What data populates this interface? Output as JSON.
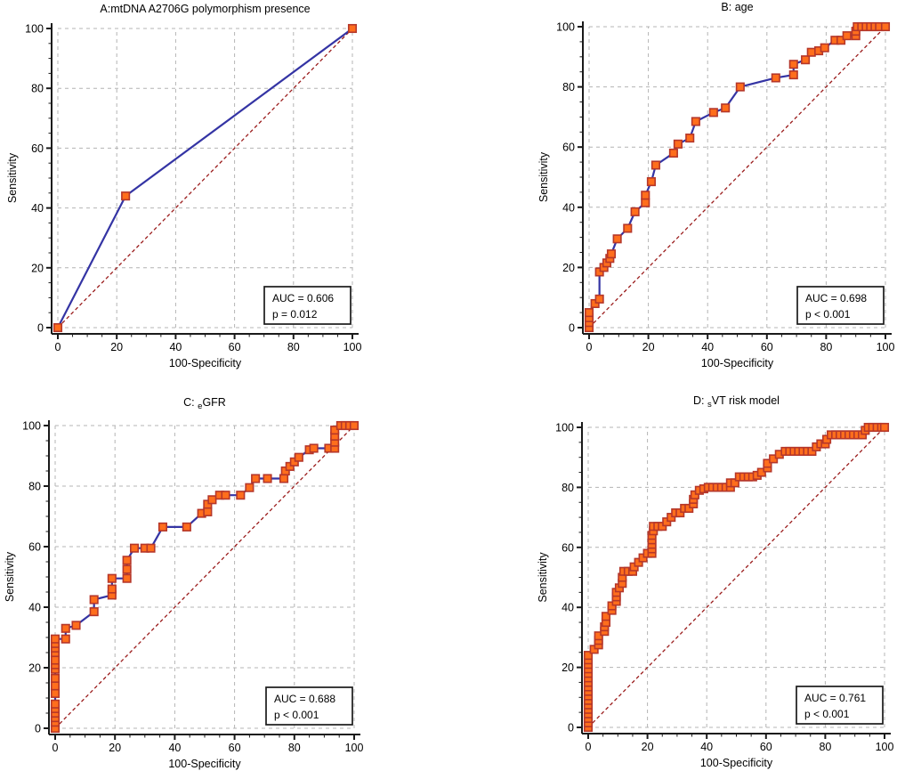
{
  "figure": {
    "background": "#ffffff"
  },
  "styles": {
    "line_color": "#3434a4",
    "marker_fill": "#ff6e1c",
    "marker_stroke": "#b5372a",
    "diagonal_color": "#9b1c1c",
    "grid_color": "#b4b4b4",
    "axis_color": "#1a1a1a",
    "text_color": "#000000",
    "box_border": "#1a1a1a",
    "box_bg": "#ffffff"
  },
  "chart_data": [
    {
      "id": "A",
      "type": "line",
      "title_parts": [
        {
          "text": "A:mtDNA A2706G polymorphism presence",
          "sub": false
        }
      ],
      "xlabel": "100-Specificity",
      "ylabel": "Sensitivity",
      "xlim": [
        0,
        100
      ],
      "ylim": [
        0,
        100
      ],
      "major_ticks": [
        0,
        20,
        40,
        60,
        80,
        100
      ],
      "minor_step": 5,
      "grid": true,
      "diagonal": true,
      "legend": {
        "auc_label": "AUC = 0.606",
        "p_label": "p = 0.012"
      },
      "points": [
        [
          0,
          0
        ],
        [
          23,
          44
        ],
        [
          100,
          100
        ]
      ]
    },
    {
      "id": "B",
      "type": "line",
      "title_parts": [
        {
          "text": "B: age",
          "sub": false
        }
      ],
      "xlabel": "100-Specificity",
      "ylabel": "Sensitivity",
      "xlim": [
        0,
        100
      ],
      "ylim": [
        0,
        100
      ],
      "major_ticks": [
        0,
        20,
        40,
        60,
        80,
        100
      ],
      "minor_step": 5,
      "grid": true,
      "diagonal": true,
      "legend": {
        "auc_label": "AUC = 0.698",
        "p_label": "p < 0.001"
      },
      "points": [
        [
          0,
          0
        ],
        [
          0,
          1.7
        ],
        [
          0,
          3.3
        ],
        [
          0,
          5
        ],
        [
          2,
          8
        ],
        [
          3.5,
          9.5
        ],
        [
          3.5,
          18.5
        ],
        [
          5,
          20
        ],
        [
          6,
          21.5
        ],
        [
          7,
          23
        ],
        [
          7.5,
          24.5
        ],
        [
          9.5,
          29.5
        ],
        [
          13,
          33
        ],
        [
          15.5,
          38.5
        ],
        [
          19,
          41.5
        ],
        [
          19,
          44
        ],
        [
          21,
          48.5
        ],
        [
          22.5,
          54
        ],
        [
          28.5,
          58
        ],
        [
          30,
          61
        ],
        [
          34,
          63
        ],
        [
          36,
          68.5
        ],
        [
          42,
          71.5
        ],
        [
          46,
          73
        ],
        [
          51,
          80
        ],
        [
          63,
          83
        ],
        [
          69,
          84
        ],
        [
          69,
          87.5
        ],
        [
          73,
          89
        ],
        [
          75,
          91.5
        ],
        [
          77.5,
          92
        ],
        [
          79.5,
          93
        ],
        [
          83,
          95.5
        ],
        [
          85,
          95.5
        ],
        [
          87,
          97
        ],
        [
          90,
          97
        ],
        [
          90,
          98.5
        ],
        [
          90.5,
          100
        ],
        [
          92,
          100
        ],
        [
          93.5,
          100
        ],
        [
          95,
          100
        ],
        [
          96.5,
          100
        ],
        [
          98,
          100
        ],
        [
          100,
          100
        ]
      ]
    },
    {
      "id": "C",
      "type": "line",
      "title_parts": [
        {
          "text": "C: ",
          "sub": false
        },
        {
          "text": "e",
          "sub": true
        },
        {
          "text": "GFR",
          "sub": false
        }
      ],
      "xlabel": "100-Specificity",
      "ylabel": "Sensitivity",
      "xlim": [
        0,
        100
      ],
      "ylim": [
        0,
        100
      ],
      "major_ticks": [
        0,
        20,
        40,
        60,
        80,
        100
      ],
      "minor_step": 5,
      "grid": true,
      "diagonal": true,
      "legend": {
        "auc_label": "AUC = 0.688",
        "p_label": "p < 0.001"
      },
      "points": [
        [
          0,
          0
        ],
        [
          0,
          2
        ],
        [
          0,
          3.5
        ],
        [
          0,
          5
        ],
        [
          0,
          6.5
        ],
        [
          0,
          8
        ],
        [
          0,
          11.5
        ],
        [
          0,
          14
        ],
        [
          0,
          16.5
        ],
        [
          0,
          19.5
        ],
        [
          0,
          21
        ],
        [
          0,
          22.5
        ],
        [
          0,
          25
        ],
        [
          0,
          26.5
        ],
        [
          0,
          28
        ],
        [
          0,
          29.5
        ],
        [
          3.5,
          29.5
        ],
        [
          3.5,
          33
        ],
        [
          7,
          34
        ],
        [
          13,
          38.5
        ],
        [
          13,
          42.5
        ],
        [
          19,
          44
        ],
        [
          19,
          46
        ],
        [
          19,
          49.5
        ],
        [
          24,
          49.5
        ],
        [
          24,
          52.5
        ],
        [
          24,
          55.5
        ],
        [
          26.5,
          59.5
        ],
        [
          30,
          59.5
        ],
        [
          32,
          59.5
        ],
        [
          36,
          66.5
        ],
        [
          44,
          66.5
        ],
        [
          49,
          71
        ],
        [
          51,
          71.5
        ],
        [
          51,
          74
        ],
        [
          52.5,
          75.5
        ],
        [
          55,
          77
        ],
        [
          57,
          77
        ],
        [
          62,
          77
        ],
        [
          65,
          79.5
        ],
        [
          67,
          82.5
        ],
        [
          71,
          82.5
        ],
        [
          76.5,
          82.5
        ],
        [
          77,
          85
        ],
        [
          78.5,
          86.5
        ],
        [
          80,
          88
        ],
        [
          81.5,
          89.5
        ],
        [
          85,
          92
        ],
        [
          86.5,
          92.5
        ],
        [
          91.5,
          92.5
        ],
        [
          93.5,
          92.5
        ],
        [
          93.5,
          94.5
        ],
        [
          93.5,
          96.5
        ],
        [
          93.5,
          98.5
        ],
        [
          95.5,
          100
        ],
        [
          97,
          100
        ],
        [
          98.5,
          100
        ],
        [
          100,
          100
        ]
      ]
    },
    {
      "id": "D",
      "type": "line",
      "title_parts": [
        {
          "text": "D: ",
          "sub": false
        },
        {
          "text": "s",
          "sub": true
        },
        {
          "text": "VT risk model",
          "sub": false
        }
      ],
      "xlabel": "100-Specificity",
      "ylabel": "Sensitivity",
      "xlim": [
        0,
        100
      ],
      "ylim": [
        0,
        100
      ],
      "major_ticks": [
        0,
        20,
        40,
        60,
        80,
        100
      ],
      "minor_step": 5,
      "grid": true,
      "diagonal": true,
      "legend": {
        "auc_label": "AUC = 0.761",
        "p_label": "p < 0.001"
      },
      "points": [
        [
          0,
          0
        ],
        [
          0,
          1.5
        ],
        [
          0,
          3
        ],
        [
          0,
          4.5
        ],
        [
          0,
          6
        ],
        [
          0,
          7.5
        ],
        [
          0,
          9
        ],
        [
          0,
          10.5
        ],
        [
          0,
          12
        ],
        [
          0,
          13.5
        ],
        [
          0,
          15
        ],
        [
          0,
          16.5
        ],
        [
          0,
          18
        ],
        [
          0,
          19.5
        ],
        [
          0,
          21
        ],
        [
          0,
          22.5
        ],
        [
          0,
          24
        ],
        [
          2,
          26
        ],
        [
          3.5,
          27.5
        ],
        [
          3.5,
          29
        ],
        [
          3.5,
          30.5
        ],
        [
          5.5,
          32
        ],
        [
          5.5,
          33.5
        ],
        [
          6,
          35
        ],
        [
          6,
          37
        ],
        [
          8,
          39
        ],
        [
          8,
          40.5
        ],
        [
          9.5,
          42
        ],
        [
          9.5,
          43.5
        ],
        [
          9.5,
          45
        ],
        [
          10.5,
          46.5
        ],
        [
          11.5,
          48
        ],
        [
          11.5,
          50
        ],
        [
          12,
          52
        ],
        [
          13.5,
          52
        ],
        [
          15,
          52
        ],
        [
          15.5,
          53.5
        ],
        [
          17,
          55
        ],
        [
          18.5,
          56.5
        ],
        [
          20,
          58
        ],
        [
          21.5,
          58
        ],
        [
          21.5,
          59.5
        ],
        [
          21.5,
          61
        ],
        [
          21.5,
          62.5
        ],
        [
          21.5,
          64
        ],
        [
          22,
          65.5
        ],
        [
          22,
          67
        ],
        [
          23.5,
          67
        ],
        [
          25,
          67
        ],
        [
          26.5,
          68.5
        ],
        [
          28,
          70
        ],
        [
          29.5,
          71.5
        ],
        [
          31,
          71.5
        ],
        [
          32.5,
          73
        ],
        [
          34,
          73
        ],
        [
          35.5,
          74.5
        ],
        [
          35.5,
          76
        ],
        [
          36,
          77.5
        ],
        [
          37.5,
          79
        ],
        [
          39,
          79.5
        ],
        [
          40.5,
          80
        ],
        [
          42,
          80
        ],
        [
          43.5,
          80
        ],
        [
          45,
          80
        ],
        [
          46.5,
          80
        ],
        [
          48,
          80
        ],
        [
          48,
          81.5
        ],
        [
          49.5,
          81.5
        ],
        [
          51,
          83.5
        ],
        [
          52.5,
          83.5
        ],
        [
          54,
          83.5
        ],
        [
          55.5,
          83.5
        ],
        [
          57,
          84
        ],
        [
          58.5,
          85
        ],
        [
          60.5,
          86.5
        ],
        [
          60.5,
          88
        ],
        [
          62.5,
          89.5
        ],
        [
          64.5,
          91
        ],
        [
          66.5,
          92
        ],
        [
          68,
          92
        ],
        [
          69.5,
          92
        ],
        [
          71,
          92
        ],
        [
          72.5,
          92
        ],
        [
          74,
          92
        ],
        [
          75.5,
          92
        ],
        [
          77,
          93.5
        ],
        [
          78.5,
          94.5
        ],
        [
          80,
          94.5
        ],
        [
          80.5,
          96
        ],
        [
          82,
          97.5
        ],
        [
          83.5,
          97.5
        ],
        [
          85,
          97.5
        ],
        [
          86.5,
          97.5
        ],
        [
          88,
          97.5
        ],
        [
          89.5,
          97.5
        ],
        [
          91,
          97.5
        ],
        [
          92.5,
          97.5
        ],
        [
          93.5,
          99
        ],
        [
          94.5,
          100
        ],
        [
          96,
          100
        ],
        [
          97.5,
          100
        ],
        [
          99,
          100
        ],
        [
          100,
          100
        ]
      ]
    }
  ]
}
